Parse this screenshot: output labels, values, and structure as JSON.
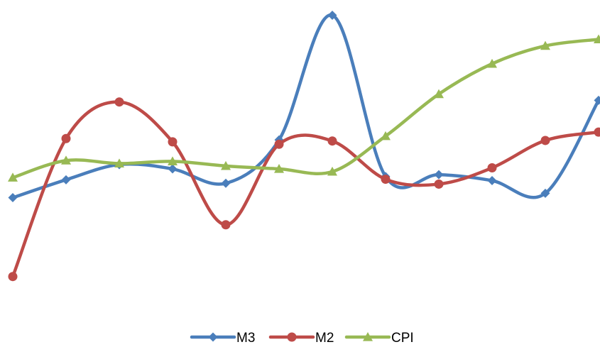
{
  "chart_data": {
    "type": "line",
    "smooth": true,
    "title": "",
    "xlabel": "",
    "ylabel": "",
    "axes_visible": false,
    "grid": false,
    "legend_position": "bottom",
    "x": [
      1,
      2,
      3,
      4,
      5,
      6,
      7,
      8,
      9,
      10,
      11,
      12
    ],
    "ylim": [
      0,
      100
    ],
    "series": [
      {
        "name": "M3",
        "color": "#4a7ebb",
        "marker": "diamond",
        "values": [
          29.7,
          36.3,
          41.9,
          40.3,
          35.0,
          51.0,
          97.0,
          37.5,
          38.2,
          36.0,
          31.3,
          65.6
        ]
      },
      {
        "name": "M2",
        "color": "#be4b48",
        "marker": "circle",
        "values": [
          0.6,
          51.5,
          65.0,
          50.3,
          19.7,
          49.4,
          50.6,
          36.5,
          34.7,
          40.7,
          50.8,
          53.9
        ]
      },
      {
        "name": "CPI",
        "color": "#98b954",
        "marker": "triangle",
        "values": [
          37.1,
          43.4,
          42.3,
          43.1,
          41.4,
          40.3,
          39.3,
          52.4,
          67.9,
          79.1,
          85.7,
          88.1
        ]
      }
    ]
  }
}
